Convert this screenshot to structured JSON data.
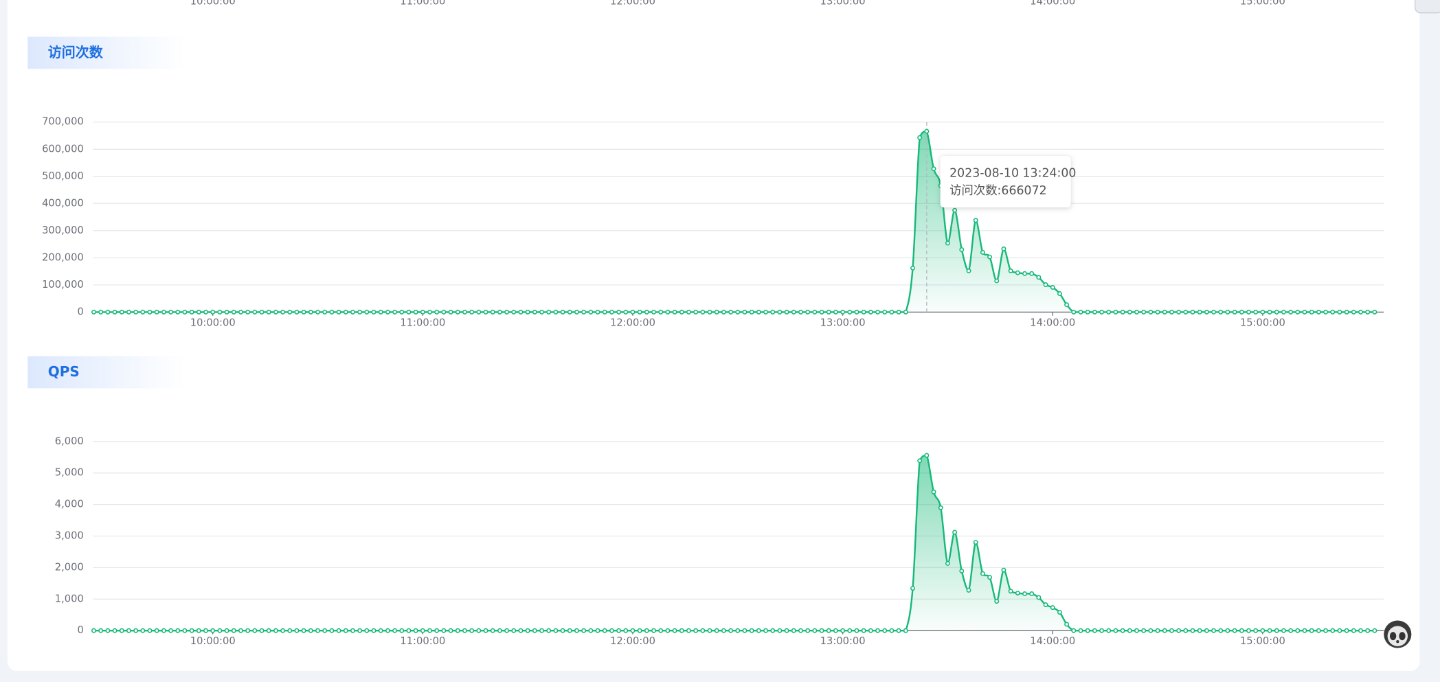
{
  "partial_axis_labels": [
    "10:00:00",
    "11:00:00",
    "12:00:00",
    "13:00:00",
    "14:00:00",
    "15:00:00"
  ],
  "chart_data": [
    {
      "type": "line",
      "title": "访问次数",
      "grid": true,
      "color": "#16b979",
      "x": [
        "09:26:00",
        "09:28:00",
        "09:30:00",
        "09:32:00",
        "09:34:00",
        "09:36:00",
        "09:38:00",
        "09:40:00",
        "09:42:00",
        "09:44:00",
        "09:46:00",
        "09:48:00",
        "09:50:00",
        "09:52:00",
        "09:54:00",
        "09:56:00",
        "09:58:00",
        "10:00:00",
        "10:02:00",
        "10:04:00",
        "10:06:00",
        "10:08:00",
        "10:10:00",
        "10:12:00",
        "10:14:00",
        "10:16:00",
        "10:18:00",
        "10:20:00",
        "10:22:00",
        "10:24:00",
        "10:26:00",
        "10:28:00",
        "10:30:00",
        "10:32:00",
        "10:34:00",
        "10:36:00",
        "10:38:00",
        "10:40:00",
        "10:42:00",
        "10:44:00",
        "10:46:00",
        "10:48:00",
        "10:50:00",
        "10:52:00",
        "10:54:00",
        "10:56:00",
        "10:58:00",
        "11:00:00",
        "11:02:00",
        "11:04:00",
        "11:06:00",
        "11:08:00",
        "11:10:00",
        "11:12:00",
        "11:14:00",
        "11:16:00",
        "11:18:00",
        "11:20:00",
        "11:22:00",
        "11:24:00",
        "11:26:00",
        "11:28:00",
        "11:30:00",
        "11:32:00",
        "11:34:00",
        "11:36:00",
        "11:38:00",
        "11:40:00",
        "11:42:00",
        "11:44:00",
        "11:46:00",
        "11:48:00",
        "11:50:00",
        "11:52:00",
        "11:54:00",
        "11:56:00",
        "11:58:00",
        "12:00:00",
        "12:02:00",
        "12:04:00",
        "12:06:00",
        "12:08:00",
        "12:10:00",
        "12:12:00",
        "12:14:00",
        "12:16:00",
        "12:18:00",
        "12:20:00",
        "12:22:00",
        "12:24:00",
        "12:26:00",
        "12:28:00",
        "12:30:00",
        "12:32:00",
        "12:34:00",
        "12:36:00",
        "12:38:00",
        "12:40:00",
        "12:42:00",
        "12:44:00",
        "12:46:00",
        "12:48:00",
        "12:50:00",
        "12:52:00",
        "12:54:00",
        "12:56:00",
        "12:58:00",
        "13:00:00",
        "13:02:00",
        "13:04:00",
        "13:06:00",
        "13:08:00",
        "13:10:00",
        "13:12:00",
        "13:14:00",
        "13:16:00",
        "13:18:00",
        "13:20:00",
        "13:22:00",
        "13:24:00",
        "13:26:00",
        "13:28:00",
        "13:30:00",
        "13:32:00",
        "13:34:00",
        "13:36:00",
        "13:38:00",
        "13:40:00",
        "13:42:00",
        "13:44:00",
        "13:46:00",
        "13:48:00",
        "13:50:00",
        "13:52:00",
        "13:54:00",
        "13:56:00",
        "13:58:00",
        "14:00:00",
        "14:02:00",
        "14:04:00",
        "14:06:00",
        "14:08:00",
        "14:10:00",
        "14:12:00",
        "14:14:00",
        "14:16:00",
        "14:18:00",
        "14:20:00",
        "14:22:00",
        "14:24:00",
        "14:26:00",
        "14:28:00",
        "14:30:00",
        "14:32:00",
        "14:34:00",
        "14:36:00",
        "14:38:00",
        "14:40:00",
        "14:42:00",
        "14:44:00",
        "14:46:00",
        "14:48:00",
        "14:50:00",
        "14:52:00",
        "14:54:00",
        "14:56:00",
        "14:58:00",
        "15:00:00",
        "15:02:00",
        "15:04:00",
        "15:06:00",
        "15:08:00",
        "15:10:00",
        "15:12:00",
        "15:14:00",
        "15:16:00",
        "15:18:00",
        "15:20:00",
        "15:22:00",
        "15:24:00",
        "15:26:00",
        "15:28:00",
        "15:30:00",
        "15:32:00"
      ],
      "values": [
        0,
        0,
        0,
        0,
        0,
        0,
        0,
        0,
        0,
        0,
        0,
        0,
        0,
        0,
        0,
        0,
        0,
        0,
        0,
        0,
        0,
        0,
        0,
        0,
        0,
        0,
        0,
        0,
        0,
        0,
        0,
        0,
        0,
        0,
        0,
        0,
        0,
        0,
        0,
        0,
        0,
        0,
        0,
        0,
        0,
        0,
        0,
        0,
        0,
        0,
        0,
        0,
        0,
        0,
        0,
        0,
        0,
        0,
        0,
        0,
        0,
        0,
        0,
        0,
        0,
        0,
        0,
        0,
        0,
        0,
        0,
        0,
        0,
        0,
        0,
        0,
        0,
        0,
        0,
        0,
        0,
        0,
        0,
        0,
        0,
        0,
        0,
        0,
        0,
        0,
        0,
        0,
        0,
        0,
        0,
        0,
        0,
        0,
        0,
        0,
        0,
        0,
        0,
        0,
        0,
        0,
        0,
        0,
        0,
        0,
        0,
        0,
        0,
        0,
        0,
        0,
        0,
        162000,
        643000,
        666072,
        528000,
        466000,
        254000,
        375000,
        230000,
        152000,
        338000,
        220000,
        203000,
        115000,
        233000,
        152000,
        145000,
        142000,
        142000,
        128000,
        101000,
        91000,
        68000,
        27000,
        0,
        0,
        0,
        0,
        0,
        0,
        0,
        0,
        0,
        0,
        0,
        0,
        0,
        0,
        0,
        0,
        0,
        0,
        0,
        0,
        0,
        0,
        0,
        0,
        0,
        0,
        0,
        0,
        0,
        0,
        0,
        0,
        0,
        0,
        0,
        0,
        0,
        0,
        0,
        0,
        0,
        0,
        0,
        0
      ],
      "ylim": [
        0,
        700000
      ],
      "yticks": [
        0,
        {
          "value": 100000,
          "label": "100,000"
        },
        {
          "value": 200000,
          "label": "200,000"
        },
        {
          "value": 300000,
          "label": "300,000"
        },
        {
          "value": 400000,
          "label": "400,000"
        },
        {
          "value": 500000,
          "label": "500,000"
        },
        {
          "value": 600000,
          "label": "600,000"
        },
        {
          "value": 700000,
          "label": "700,000"
        }
      ],
      "xticks": [
        "10:00:00",
        "11:00:00",
        "12:00:00",
        "13:00:00",
        "14:00:00",
        "15:00:00"
      ],
      "tooltip": {
        "title": "2023-08-10 13:24:00",
        "text": "访问次数:666072"
      }
    },
    {
      "type": "line",
      "title": "QPS",
      "grid": true,
      "color": "#16b979",
      "x": [
        "09:26:00",
        "09:28:00",
        "09:30:00",
        "09:32:00",
        "09:34:00",
        "09:36:00",
        "09:38:00",
        "09:40:00",
        "09:42:00",
        "09:44:00",
        "09:46:00",
        "09:48:00",
        "09:50:00",
        "09:52:00",
        "09:54:00",
        "09:56:00",
        "09:58:00",
        "10:00:00",
        "10:02:00",
        "10:04:00",
        "10:06:00",
        "10:08:00",
        "10:10:00",
        "10:12:00",
        "10:14:00",
        "10:16:00",
        "10:18:00",
        "10:20:00",
        "10:22:00",
        "10:24:00",
        "10:26:00",
        "10:28:00",
        "10:30:00",
        "10:32:00",
        "10:34:00",
        "10:36:00",
        "10:38:00",
        "10:40:00",
        "10:42:00",
        "10:44:00",
        "10:46:00",
        "10:48:00",
        "10:50:00",
        "10:52:00",
        "10:54:00",
        "10:56:00",
        "10:58:00",
        "11:00:00",
        "11:02:00",
        "11:04:00",
        "11:06:00",
        "11:08:00",
        "11:10:00",
        "11:12:00",
        "11:14:00",
        "11:16:00",
        "11:18:00",
        "11:20:00",
        "11:22:00",
        "11:24:00",
        "11:26:00",
        "11:28:00",
        "11:30:00",
        "11:32:00",
        "11:34:00",
        "11:36:00",
        "11:38:00",
        "11:40:00",
        "11:42:00",
        "11:44:00",
        "11:46:00",
        "11:48:00",
        "11:50:00",
        "11:52:00",
        "11:54:00",
        "11:56:00",
        "11:58:00",
        "12:00:00",
        "12:02:00",
        "12:04:00",
        "12:06:00",
        "12:08:00",
        "12:10:00",
        "12:12:00",
        "12:14:00",
        "12:16:00",
        "12:18:00",
        "12:20:00",
        "12:22:00",
        "12:24:00",
        "12:26:00",
        "12:28:00",
        "12:30:00",
        "12:32:00",
        "12:34:00",
        "12:36:00",
        "12:38:00",
        "12:40:00",
        "12:42:00",
        "12:44:00",
        "12:46:00",
        "12:48:00",
        "12:50:00",
        "12:52:00",
        "12:54:00",
        "12:56:00",
        "12:58:00",
        "13:00:00",
        "13:02:00",
        "13:04:00",
        "13:06:00",
        "13:08:00",
        "13:10:00",
        "13:12:00",
        "13:14:00",
        "13:16:00",
        "13:18:00",
        "13:20:00",
        "13:22:00",
        "13:24:00",
        "13:26:00",
        "13:28:00",
        "13:30:00",
        "13:32:00",
        "13:34:00",
        "13:36:00",
        "13:38:00",
        "13:40:00",
        "13:42:00",
        "13:44:00",
        "13:46:00",
        "13:48:00",
        "13:50:00",
        "13:52:00",
        "13:54:00",
        "13:56:00",
        "13:58:00",
        "14:00:00",
        "14:02:00",
        "14:04:00",
        "14:06:00",
        "14:08:00",
        "14:10:00",
        "14:12:00",
        "14:14:00",
        "14:16:00",
        "14:18:00",
        "14:20:00",
        "14:22:00",
        "14:24:00",
        "14:26:00",
        "14:28:00",
        "14:30:00",
        "14:32:00",
        "14:34:00",
        "14:36:00",
        "14:38:00",
        "14:40:00",
        "14:42:00",
        "14:44:00",
        "14:46:00",
        "14:48:00",
        "14:50:00",
        "14:52:00",
        "14:54:00",
        "14:56:00",
        "14:58:00",
        "15:00:00",
        "15:02:00",
        "15:04:00",
        "15:06:00",
        "15:08:00",
        "15:10:00",
        "15:12:00",
        "15:14:00",
        "15:16:00",
        "15:18:00",
        "15:20:00",
        "15:22:00",
        "15:24:00",
        "15:26:00",
        "15:28:00",
        "15:30:00",
        "15:32:00"
      ],
      "values": [
        0,
        0,
        0,
        0,
        0,
        0,
        0,
        0,
        0,
        0,
        0,
        0,
        0,
        0,
        0,
        0,
        0,
        0,
        0,
        0,
        0,
        0,
        0,
        0,
        0,
        0,
        0,
        0,
        0,
        0,
        0,
        0,
        0,
        0,
        0,
        0,
        0,
        0,
        0,
        0,
        0,
        0,
        0,
        0,
        0,
        0,
        0,
        0,
        0,
        0,
        0,
        0,
        0,
        0,
        0,
        0,
        0,
        0,
        0,
        0,
        0,
        0,
        0,
        0,
        0,
        0,
        0,
        0,
        0,
        0,
        0,
        0,
        0,
        0,
        0,
        0,
        0,
        0,
        0,
        0,
        0,
        0,
        0,
        0,
        0,
        0,
        0,
        0,
        0,
        0,
        0,
        0,
        0,
        0,
        0,
        0,
        0,
        0,
        0,
        0,
        0,
        0,
        0,
        0,
        0,
        0,
        0,
        0,
        0,
        0,
        0,
        0,
        0,
        0,
        0,
        0,
        0,
        1340,
        5390,
        5560,
        4400,
        3900,
        2130,
        3120,
        1890,
        1280,
        2800,
        1810,
        1690,
        930,
        1920,
        1250,
        1190,
        1170,
        1170,
        1050,
        820,
        730,
        580,
        200,
        0,
        0,
        0,
        0,
        0,
        0,
        0,
        0,
        0,
        0,
        0,
        0,
        0,
        0,
        0,
        0,
        0,
        0,
        0,
        0,
        0,
        0,
        0,
        0,
        0,
        0,
        0,
        0,
        0,
        0,
        0,
        0,
        0,
        0,
        0,
        0,
        0,
        0,
        0,
        0,
        0,
        0,
        0,
        0
      ],
      "ylim": [
        0,
        6000
      ],
      "yticks": [
        0,
        {
          "value": 1000,
          "label": "1,000"
        },
        {
          "value": 2000,
          "label": "2,000"
        },
        {
          "value": 3000,
          "label": "3,000"
        },
        {
          "value": 4000,
          "label": "4,000"
        },
        {
          "value": 5000,
          "label": "5,000"
        },
        {
          "value": 6000,
          "label": "6,000"
        }
      ],
      "xticks": [
        "10:00:00",
        "11:00:00",
        "12:00:00",
        "13:00:00",
        "14:00:00",
        "15:00:00"
      ]
    }
  ]
}
